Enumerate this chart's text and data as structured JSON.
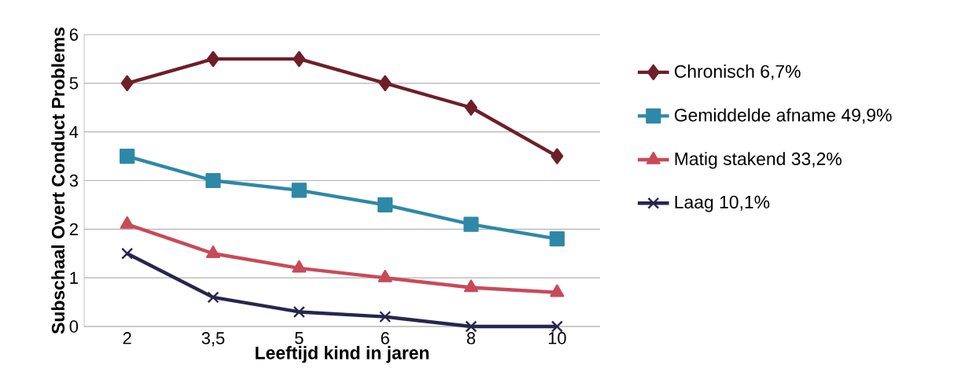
{
  "chart_data": {
    "type": "line",
    "xlabel": "Leeftijd kind in jaren",
    "ylabel": "Subschaal Overt Conduct Problems",
    "categories": [
      "2",
      "3,5",
      "5",
      "6",
      "8",
      "10"
    ],
    "series": [
      {
        "name": "Chronisch 6,7%",
        "color": "#6e1f2a",
        "marker": "diamond",
        "values": [
          5,
          5.5,
          5.5,
          5,
          4.5,
          3.5
        ]
      },
      {
        "name": "Gemiddelde afname 49,9%",
        "color": "#2e88a8",
        "marker": "square",
        "values": [
          3.5,
          3.0,
          2.8,
          2.5,
          2.1,
          1.8
        ]
      },
      {
        "name": "Matig stakend 33,2%",
        "color": "#c84a58",
        "marker": "triangle",
        "values": [
          2.1,
          1.5,
          1.2,
          1.0,
          0.8,
          0.7
        ]
      },
      {
        "name": "Laag 10,1%",
        "color": "#27264c",
        "marker": "cross",
        "values": [
          1.5,
          0.6,
          0.3,
          0.2,
          0,
          0
        ]
      }
    ],
    "ylim": [
      0,
      6
    ],
    "yticks": [
      0,
      1,
      2,
      3,
      4,
      5,
      6
    ],
    "grid": "y",
    "legend": "right",
    "line_style": "solid"
  }
}
